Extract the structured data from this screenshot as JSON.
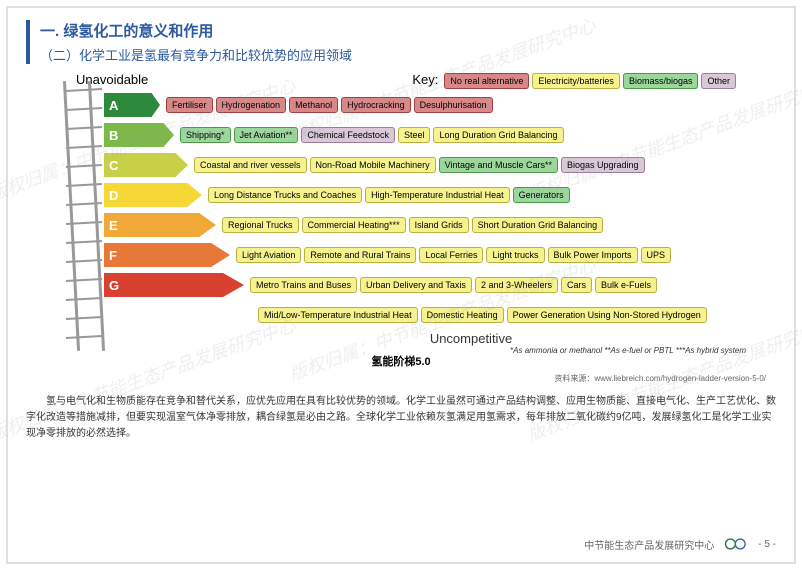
{
  "header": {
    "h1": "一. 绿氢化工的意义和作用",
    "h2": "（二）化学工业是氢最有竞争力和比较优势的应用领域"
  },
  "labels": {
    "top": "Unavoidable",
    "bottom": "Uncompetitive",
    "key": "Key:"
  },
  "legend": [
    {
      "t": "No real alternative",
      "bg": "#d88888",
      "bd": "#a04040"
    },
    {
      "t": "Electricity/batteries",
      "bg": "#f5f28f",
      "bd": "#b8b040"
    },
    {
      "t": "Biomass/biogas",
      "bg": "#9cd69c",
      "bd": "#4a9a4a"
    },
    {
      "t": "Other",
      "bg": "#d8c8d8",
      "bd": "#988098"
    }
  ],
  "grades": [
    {
      "l": "A",
      "c": "#2d8a3d"
    },
    {
      "l": "B",
      "c": "#7db84a"
    },
    {
      "l": "C",
      "c": "#c8d048"
    },
    {
      "l": "D",
      "c": "#f5d835"
    },
    {
      "l": "E",
      "c": "#f0a838"
    },
    {
      "l": "F",
      "c": "#e87838"
    },
    {
      "l": "G",
      "c": "#d84030"
    }
  ],
  "rows": [
    [
      {
        "t": "Fertiliser",
        "k": 0
      },
      {
        "t": "Hydrogenation",
        "k": 0
      },
      {
        "t": "Methanol",
        "k": 0
      },
      {
        "t": "Hydrocracking",
        "k": 0
      },
      {
        "t": "Desulphurisation",
        "k": 0
      }
    ],
    [
      {
        "t": "Shipping*",
        "k": 2
      },
      {
        "t": "Jet Aviation**",
        "k": 2
      },
      {
        "t": "Chemical Feedstock",
        "k": 3
      },
      {
        "t": "Steel",
        "k": 1
      },
      {
        "t": "Long Duration Grid Balancing",
        "k": 1
      }
    ],
    [
      {
        "t": "Coastal and river vessels",
        "k": 1
      },
      {
        "t": "Non-Road Mobile Machinery",
        "k": 1
      },
      {
        "t": "Vintage and Muscle Cars**",
        "k": 2
      },
      {
        "t": "Biogas Upgrading",
        "k": 3
      }
    ],
    [
      {
        "t": "Long Distance Trucks and Coaches",
        "k": 1
      },
      {
        "t": "High-Temperature Industrial Heat",
        "k": 1
      },
      {
        "t": "Generators",
        "k": 2
      }
    ],
    [
      {
        "t": "Regional Trucks",
        "k": 1
      },
      {
        "t": "Commercial Heating***",
        "k": 1
      },
      {
        "t": "Island Grids",
        "k": 1
      },
      {
        "t": "Short Duration Grid Balancing",
        "k": 1
      }
    ],
    [
      {
        "t": "Light Aviation",
        "k": 1
      },
      {
        "t": "Remote and Rural Trains",
        "k": 1
      },
      {
        "t": "Local Ferries",
        "k": 1
      },
      {
        "t": "Light trucks",
        "k": 1
      },
      {
        "t": "Bulk Power Imports",
        "k": 1
      },
      {
        "t": "UPS",
        "k": 1
      }
    ],
    [
      {
        "t": "Metro Trains and Buses",
        "k": 1
      },
      {
        "t": "Urban Delivery and Taxis",
        "k": 1
      },
      {
        "t": "2 and 3-Wheelers",
        "k": 1
      },
      {
        "t": "Cars",
        "k": 1
      },
      {
        "t": "Bulk e-Fuels",
        "k": 1
      }
    ],
    [
      {
        "t": "Mid/Low-Temperature Industrial Heat",
        "k": 1
      },
      {
        "t": "Domestic Heating",
        "k": 1
      },
      {
        "t": "Power Generation Using Non-Stored Hydrogen",
        "k": 1
      }
    ]
  ],
  "notes": "*As ammonia or methanol   **As e-fuel or PBTL   ***As hybrid system",
  "caption": "氢能阶梯5.0",
  "source": "资料来源：www.liebreich.com/hydrogen-ladder-version-5-0/",
  "para": "氢与电气化和生物质能存在竞争和替代关系，应优先应用在具有比较优势的领域。化学工业虽然可通过产品结构调整、应用生物质能、直接电气化、生产工艺优化、数字化改造等措施减排，但要实现温室气体净零排放，耦合绿氢是必由之路。全球化学工业依赖灰氢满足用氢需求，每年排放二氧化碳约9亿吨，发展绿氢化工是化学工业实现净零排放的必然选择。",
  "footer": {
    "org": "中节能生态产品发展研究中心",
    "page": "- 5 -"
  },
  "wm": "版权归属：中节能生态产品发展研究中心"
}
